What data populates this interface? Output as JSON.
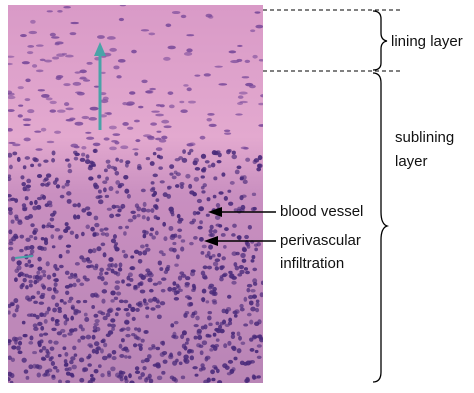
{
  "labels": {
    "lining": "lining layer",
    "sublining": [
      "sublining",
      "layer"
    ],
    "blood_vessel": "blood vessel",
    "perivascular": [
      "perivascular",
      "infiltration"
    ]
  }
}
